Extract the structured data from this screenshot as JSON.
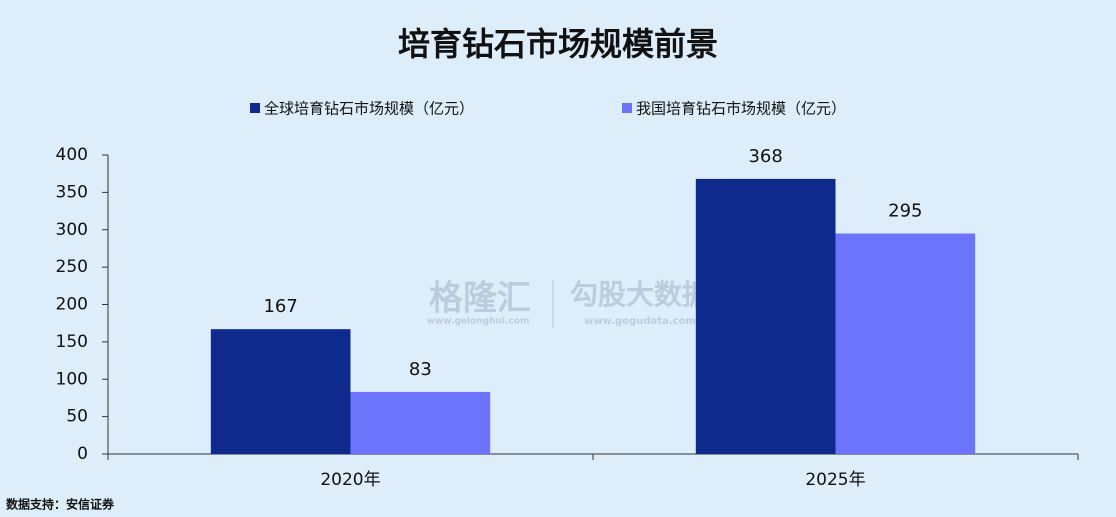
{
  "chart_data": {
    "type": "bar",
    "title": "培育钻石市场规模前景",
    "categories": [
      "2020年",
      "2025年"
    ],
    "series": [
      {
        "name": "全球培育钻石市场规模（亿元）",
        "color": "#0e2a8c",
        "values": [
          167,
          368
        ]
      },
      {
        "name": "我国培育钻石市场规模（亿元）",
        "color": "#6b74fb",
        "values": [
          83,
          295
        ]
      }
    ],
    "ylim": [
      0,
      400
    ],
    "yticks": [
      0,
      50,
      100,
      150,
      200,
      250,
      300,
      350,
      400
    ],
    "grid": false,
    "legend": "top",
    "source": "数据支持：安信证券",
    "watermarks": [
      "格隆汇",
      "www.gelonghui.com",
      "勾股大数据",
      "www.gogudata.com"
    ]
  }
}
